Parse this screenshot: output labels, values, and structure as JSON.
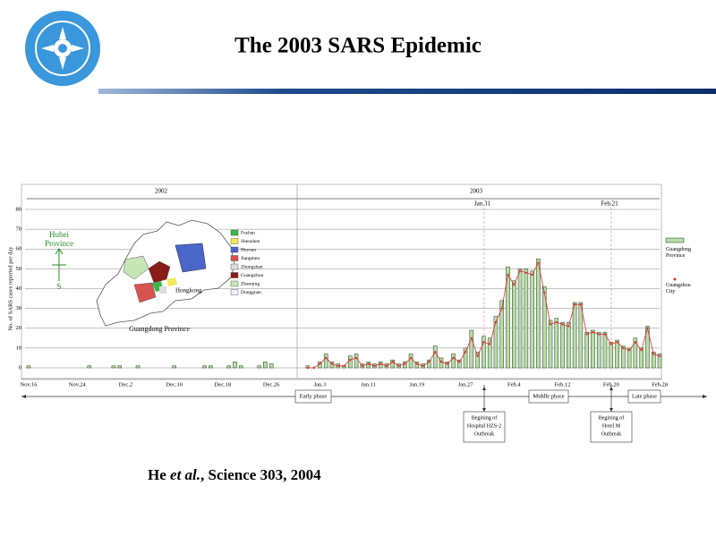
{
  "slide": {
    "title": "The 2003 SARS Epidemic",
    "citation": {
      "author": "He",
      "etal": "et al.",
      "rest": ", Science 303, 2004"
    }
  },
  "chart_data": {
    "type": "bar",
    "y_label": "No. of SARS cases reported per day",
    "categories": [
      "Nov.16",
      null,
      null,
      null,
      null,
      null,
      null,
      null,
      "Nov.24",
      null,
      null,
      null,
      null,
      null,
      null,
      null,
      "Dec.2",
      null,
      null,
      null,
      null,
      null,
      null,
      null,
      "Dec.10",
      null,
      null,
      null,
      null,
      null,
      null,
      null,
      "Dec.18",
      null,
      null,
      null,
      null,
      null,
      null,
      null,
      "Dec.26",
      null,
      null,
      null,
      null,
      null,
      null,
      null,
      "Jan.3",
      null,
      null,
      null,
      null,
      null,
      null,
      null,
      "Jan.11",
      null,
      null,
      null,
      null,
      null,
      null,
      null,
      "Jan.19",
      null,
      null,
      null,
      null,
      null,
      null,
      null,
      "Jan.27",
      null,
      null,
      null,
      null,
      null,
      null,
      null,
      "Feb.4",
      null,
      null,
      null,
      null,
      null,
      null,
      null,
      "Feb.12",
      null,
      null,
      null,
      null,
      null,
      null,
      null,
      "Feb.20",
      null,
      null,
      null,
      null,
      null,
      null,
      null,
      "Feb.28"
    ],
    "series": [
      {
        "name": "Guangdong Province",
        "color": "#b9dca8",
        "values": [
          1,
          0,
          0,
          0,
          0,
          0,
          0,
          0,
          0,
          0,
          1,
          0,
          0,
          0,
          1,
          1,
          0,
          0,
          1,
          0,
          0,
          0,
          0,
          0,
          1,
          0,
          0,
          0,
          0,
          1,
          1,
          0,
          0,
          1,
          3,
          1,
          0,
          0,
          1,
          3,
          2,
          0,
          0,
          0,
          0,
          0,
          1,
          0,
          3,
          7,
          3,
          2,
          1,
          6,
          7,
          2,
          3,
          2,
          3,
          2,
          4,
          2,
          3,
          7,
          3,
          2,
          4,
          11,
          5,
          3,
          7,
          4,
          10,
          19,
          8,
          16,
          15,
          26,
          34,
          51,
          44,
          50,
          50,
          49,
          55,
          41,
          24,
          25,
          23,
          23,
          33,
          33,
          18,
          19,
          18,
          18,
          13,
          14,
          11,
          10,
          15,
          10,
          21,
          8,
          7
        ]
      },
      {
        "name": "Guangzhou City",
        "color": "#d9302c",
        "values": [
          null,
          null,
          null,
          null,
          null,
          null,
          null,
          null,
          null,
          null,
          null,
          null,
          null,
          null,
          null,
          null,
          null,
          null,
          null,
          null,
          null,
          null,
          null,
          null,
          null,
          null,
          null,
          null,
          null,
          null,
          null,
          null,
          null,
          null,
          null,
          null,
          null,
          null,
          null,
          null,
          null,
          null,
          null,
          null,
          null,
          null,
          0,
          0,
          2,
          5,
          2,
          1,
          1,
          4,
          5,
          1,
          2,
          1,
          2,
          1,
          3,
          1,
          2,
          5,
          2,
          1,
          3,
          8,
          3,
          2,
          5,
          3,
          8,
          15,
          6,
          13,
          12,
          23,
          30,
          47,
          42,
          49,
          48,
          47,
          53,
          38,
          22,
          23,
          22,
          21,
          32,
          32,
          17,
          18,
          17,
          17,
          12,
          13,
          10,
          9,
          13,
          9,
          20,
          7,
          6
        ]
      }
    ],
    "ylim": [
      0,
      80
    ],
    "yticks": [
      0,
      10,
      20,
      30,
      40,
      50,
      60,
      70,
      80
    ],
    "grid": true,
    "periods": [
      "2002",
      "2003"
    ],
    "markers": [
      "Jan.31",
      "Feb.21"
    ],
    "phases": [
      "Early phase",
      "Middle phase",
      "Late phase"
    ],
    "events": [
      [
        "Begining of",
        "Hospital HZS-2",
        "Outbreak"
      ],
      [
        "Begining of",
        "Hotel M",
        "Outbreak"
      ]
    ]
  },
  "inset_map": {
    "compass_top": "Hubei",
    "compass_top2": "Province",
    "compass_bottom": "S",
    "region_label": "Guangdong Province",
    "hongkong": "Hongkong",
    "legend": [
      {
        "name": "Foshan",
        "color": "#3cb44b"
      },
      {
        "name": "Shenzhen",
        "color": "#f2e85c"
      },
      {
        "name": "Heyuan",
        "color": "#4a66c8"
      },
      {
        "name": "Jiangmen",
        "color": "#d9534f"
      },
      {
        "name": "Zhongshan",
        "color": "#dddddd"
      },
      {
        "name": "Guangzhou",
        "color": "#8b1a1a"
      },
      {
        "name": "Zhaoqing",
        "color": "#c7e6b6"
      },
      {
        "name": "Dongguan",
        "color": "#eef0ff"
      }
    ]
  }
}
